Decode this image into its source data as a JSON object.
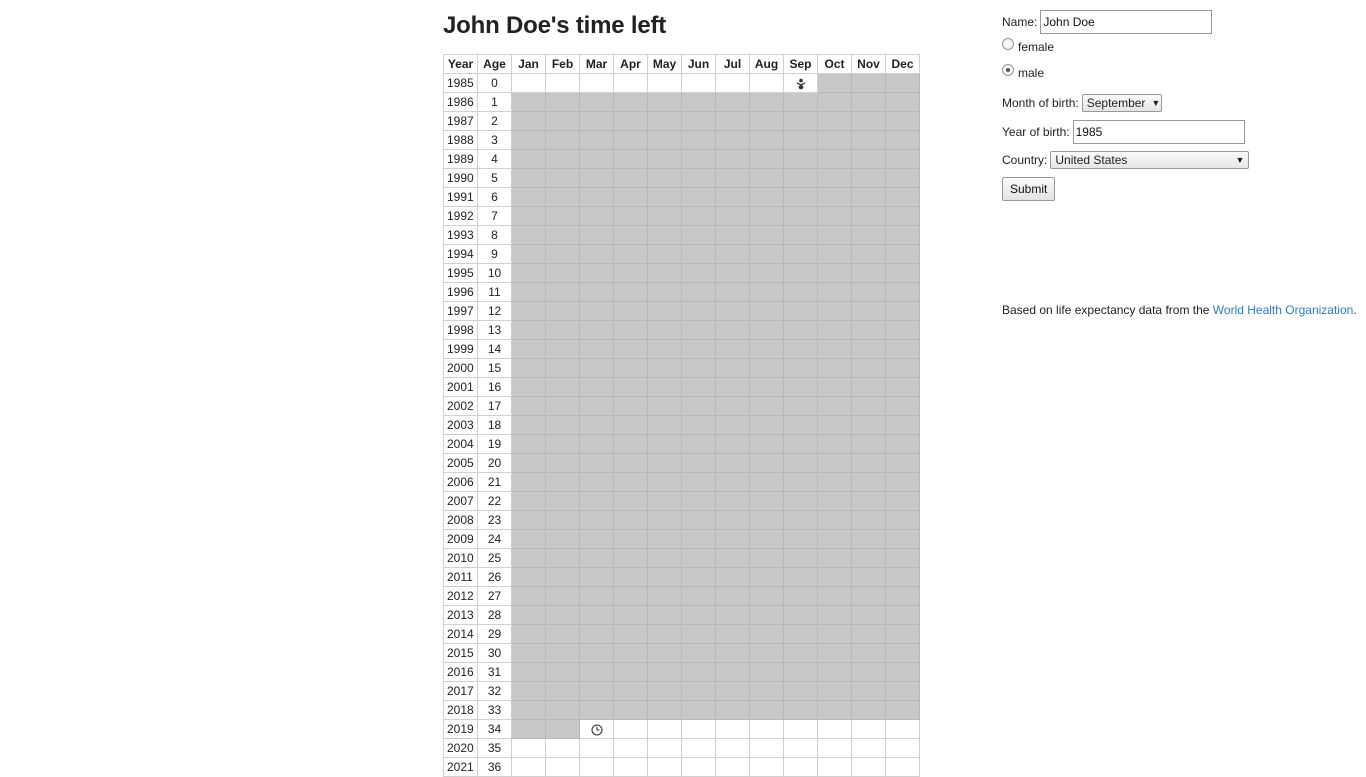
{
  "title": "John Doe's time left",
  "grid": {
    "header_year": "Year",
    "header_age": "Age",
    "months": [
      "Jan",
      "Feb",
      "Mar",
      "Apr",
      "May",
      "Jun",
      "Jul",
      "Aug",
      "Sep",
      "Oct",
      "Nov",
      "Dec"
    ],
    "start_year": 1985,
    "rows": [
      {
        "year": "1985",
        "age": "0"
      },
      {
        "year": "1986",
        "age": "1"
      },
      {
        "year": "1987",
        "age": "2"
      },
      {
        "year": "1988",
        "age": "3"
      },
      {
        "year": "1989",
        "age": "4"
      },
      {
        "year": "1990",
        "age": "5"
      },
      {
        "year": "1991",
        "age": "6"
      },
      {
        "year": "1992",
        "age": "7"
      },
      {
        "year": "1993",
        "age": "8"
      },
      {
        "year": "1994",
        "age": "9"
      },
      {
        "year": "1995",
        "age": "10"
      },
      {
        "year": "1996",
        "age": "11"
      },
      {
        "year": "1997",
        "age": "12"
      },
      {
        "year": "1998",
        "age": "13"
      },
      {
        "year": "1999",
        "age": "14"
      },
      {
        "year": "2000",
        "age": "15"
      },
      {
        "year": "2001",
        "age": "16"
      },
      {
        "year": "2002",
        "age": "17"
      },
      {
        "year": "2003",
        "age": "18"
      },
      {
        "year": "2004",
        "age": "19"
      },
      {
        "year": "2005",
        "age": "20"
      },
      {
        "year": "2006",
        "age": "21"
      },
      {
        "year": "2007",
        "age": "22"
      },
      {
        "year": "2008",
        "age": "23"
      },
      {
        "year": "2009",
        "age": "24"
      },
      {
        "year": "2010",
        "age": "25"
      },
      {
        "year": "2011",
        "age": "26"
      },
      {
        "year": "2012",
        "age": "27"
      },
      {
        "year": "2013",
        "age": "28"
      },
      {
        "year": "2014",
        "age": "29"
      },
      {
        "year": "2015",
        "age": "30"
      },
      {
        "year": "2016",
        "age": "31"
      },
      {
        "year": "2017",
        "age": "32"
      },
      {
        "year": "2018",
        "age": "33"
      },
      {
        "year": "2019",
        "age": "34"
      },
      {
        "year": "2020",
        "age": "35"
      },
      {
        "year": "2021",
        "age": "36"
      }
    ],
    "birth_year": "1985",
    "birth_month": "Sep",
    "current_year": "2019",
    "current_month": "Mar",
    "lived_color": "#c8c8c8",
    "birth_icon": "baby-icon",
    "current_icon": "clock-icon"
  },
  "form": {
    "name_label": "Name:",
    "name_value": "John Doe",
    "female_label": "female",
    "male_label": "male",
    "selected_gender": "male",
    "month_label": "Month of birth:",
    "month_value": "September",
    "year_label": "Year of birth:",
    "year_value": "1985",
    "country_label": "Country:",
    "country_value": "United States",
    "submit_label": "Submit"
  },
  "footer": {
    "text_before": "Based on life expectancy data from the ",
    "link_text": "World Health Organization",
    "text_after": "."
  }
}
